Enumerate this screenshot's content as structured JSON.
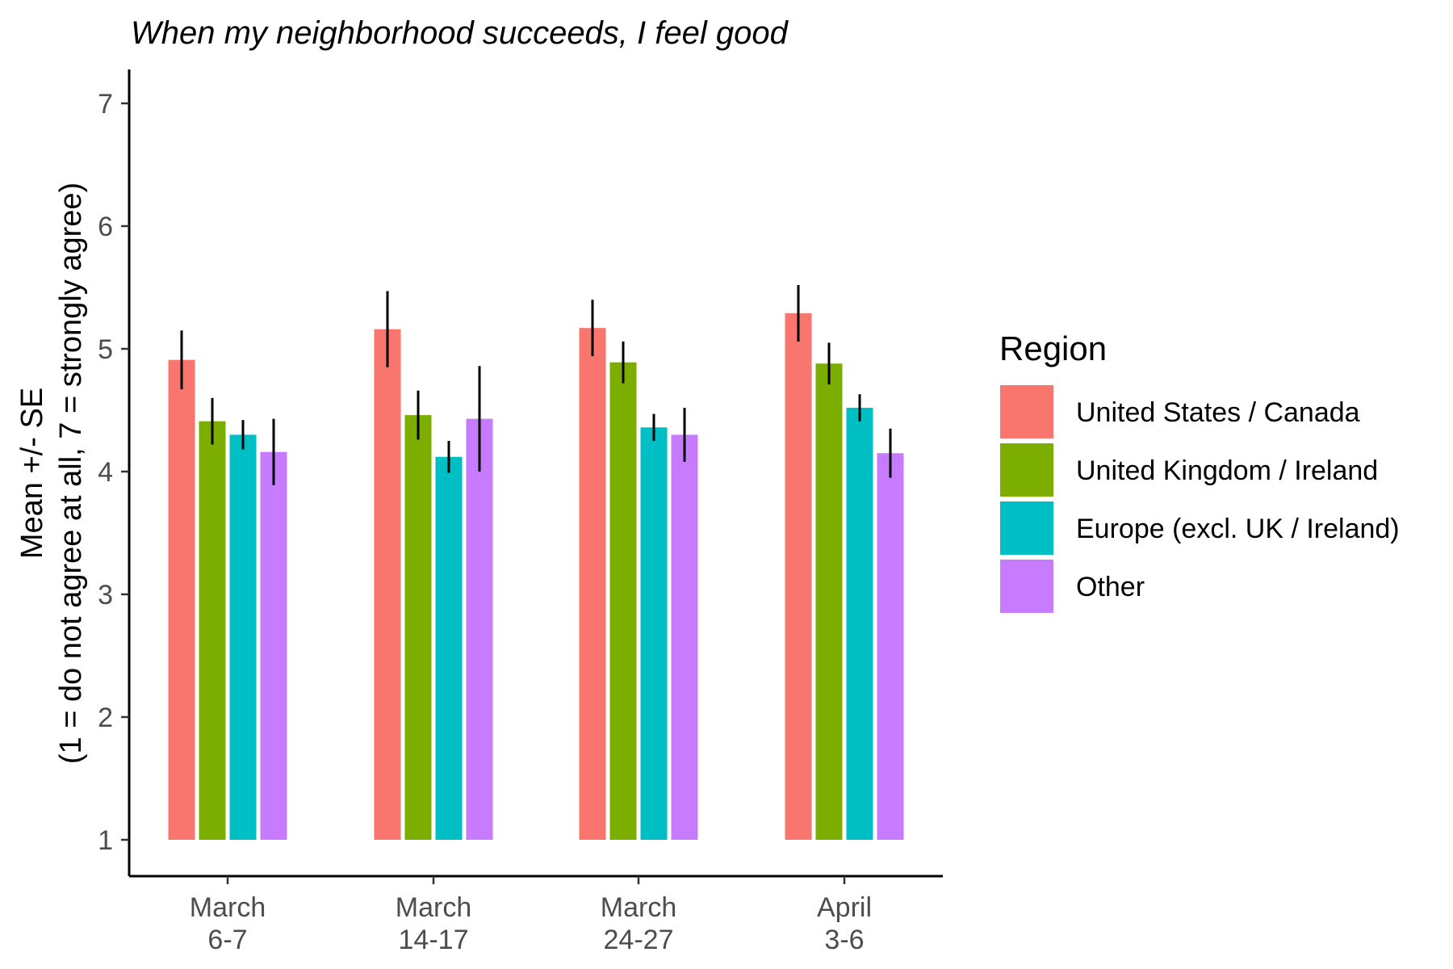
{
  "chart_data": {
    "type": "bar",
    "title": "When my neighborhood succeeds, I feel good",
    "ylabel_lines": [
      "Mean +/- SE",
      "(1 = do not agree at all, 7 = strongly agree)"
    ],
    "xlabel": "",
    "ylim": [
      1,
      7
    ],
    "y_ticks": [
      1,
      2,
      3,
      4,
      5,
      6,
      7
    ],
    "bar_base": 1,
    "categories": [
      [
        "March",
        "6-7"
      ],
      [
        "March",
        "14-17"
      ],
      [
        "March",
        "24-27"
      ],
      [
        "April",
        "3-6"
      ]
    ],
    "legend": {
      "title": "Region",
      "position": "right"
    },
    "grid": false,
    "series": [
      {
        "name": "United States / Canada",
        "color": "#F8766D",
        "values": [
          4.91,
          5.16,
          5.17,
          5.29
        ],
        "se": [
          0.24,
          0.31,
          0.23,
          0.23
        ]
      },
      {
        "name": "United Kingdom / Ireland",
        "color": "#7CAE00",
        "values": [
          4.41,
          4.46,
          4.89,
          4.88
        ],
        "se": [
          0.19,
          0.2,
          0.17,
          0.17
        ]
      },
      {
        "name": "Europe (excl. UK / Ireland)",
        "color": "#00BFC4",
        "values": [
          4.3,
          4.12,
          4.36,
          4.52
        ],
        "se": [
          0.12,
          0.13,
          0.11,
          0.11
        ]
      },
      {
        "name": "Other",
        "color": "#C77CFF",
        "values": [
          4.16,
          4.43,
          4.3,
          4.15
        ],
        "se": [
          0.27,
          0.43,
          0.22,
          0.2
        ]
      }
    ]
  }
}
